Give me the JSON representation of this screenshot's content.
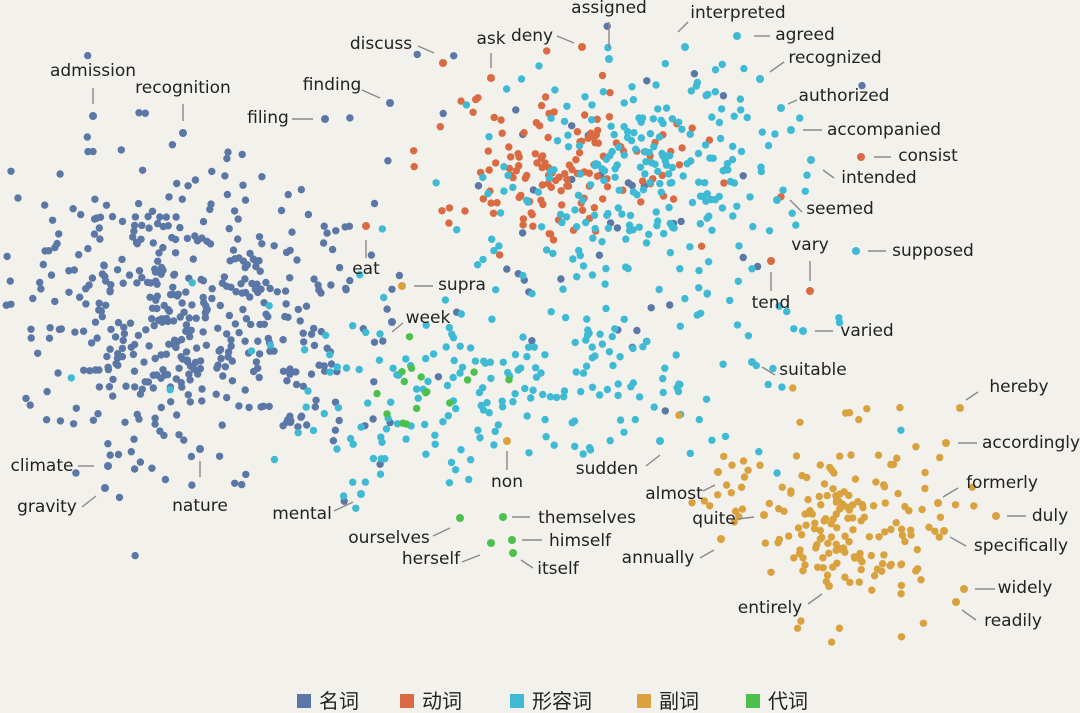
{
  "chart_data": {
    "type": "scatter",
    "title": "",
    "xlabel": "",
    "ylabel": "",
    "legend_position": "bottom",
    "grid": false,
    "series": [
      {
        "name": "名词",
        "color": "#5b77a6"
      },
      {
        "name": "动词",
        "color": "#d96a42"
      },
      {
        "name": "形容词",
        "color": "#3fbad4"
      },
      {
        "name": "副词",
        "color": "#d9a23e"
      },
      {
        "name": "代词",
        "color": "#4cc04c"
      }
    ],
    "clusters": [
      {
        "series": 0,
        "n": 430,
        "cx": 170,
        "cy": 310,
        "sx": 80,
        "sy": 75
      },
      {
        "series": 0,
        "n": 60,
        "cx": 330,
        "cy": 330,
        "sx": 45,
        "sy": 70
      },
      {
        "series": 0,
        "n": 45,
        "cx": 600,
        "cy": 220,
        "sx": 110,
        "sy": 80
      },
      {
        "series": 1,
        "n": 140,
        "cx": 560,
        "cy": 165,
        "sx": 70,
        "sy": 40
      },
      {
        "series": 2,
        "n": 220,
        "cx": 640,
        "cy": 170,
        "sx": 70,
        "sy": 55
      },
      {
        "series": 2,
        "n": 190,
        "cx": 560,
        "cy": 370,
        "sx": 130,
        "sy": 50
      },
      {
        "series": 2,
        "n": 40,
        "cx": 380,
        "cy": 420,
        "sx": 60,
        "sy": 40
      },
      {
        "series": 3,
        "n": 170,
        "cx": 850,
        "cy": 520,
        "sx": 45,
        "sy": 45
      },
      {
        "series": 3,
        "n": 15,
        "cx": 720,
        "cy": 470,
        "sx": 35,
        "sy": 40
      },
      {
        "series": 4,
        "n": 16,
        "cx": 420,
        "cy": 390,
        "sx": 30,
        "sy": 25
      }
    ],
    "annotations": [
      {
        "text": "admission",
        "series": 0
      },
      {
        "text": "recognition",
        "series": 0
      },
      {
        "text": "finding",
        "series": 0
      },
      {
        "text": "filing",
        "series": 0
      },
      {
        "text": "discuss",
        "series": 1
      },
      {
        "text": "ask",
        "series": 1
      },
      {
        "text": "deny",
        "series": 1
      },
      {
        "text": "assigned",
        "series": 2
      },
      {
        "text": "interpreted",
        "series": 2
      },
      {
        "text": "agreed",
        "series": 2
      },
      {
        "text": "recognized",
        "series": 2
      },
      {
        "text": "authorized",
        "series": 2
      },
      {
        "text": "accompanied",
        "series": 2
      },
      {
        "text": "consist",
        "series": 1
      },
      {
        "text": "intended",
        "series": 2
      },
      {
        "text": "seemed",
        "series": 2
      },
      {
        "text": "eat",
        "series": 1
      },
      {
        "text": "vary",
        "series": 1
      },
      {
        "text": "supposed",
        "series": 2
      },
      {
        "text": "supra",
        "series": 3
      },
      {
        "text": "tend",
        "series": 1
      },
      {
        "text": "week",
        "series": 0
      },
      {
        "text": "varied",
        "series": 2
      },
      {
        "text": "suitable",
        "series": 2
      },
      {
        "text": "hereby",
        "series": 3
      },
      {
        "text": "accordingly",
        "series": 3
      },
      {
        "text": "climate",
        "series": 0
      },
      {
        "text": "gravity",
        "series": 0
      },
      {
        "text": "nature",
        "series": 0
      },
      {
        "text": "non",
        "series": 3
      },
      {
        "text": "sudden",
        "series": 2
      },
      {
        "text": "almost",
        "series": 3
      },
      {
        "text": "formerly",
        "series": 3
      },
      {
        "text": "mental",
        "series": 2
      },
      {
        "text": "ourselves",
        "series": 4
      },
      {
        "text": "themselves",
        "series": 4
      },
      {
        "text": "himself",
        "series": 4
      },
      {
        "text": "herself",
        "series": 4
      },
      {
        "text": "itself",
        "series": 4
      },
      {
        "text": "quite",
        "series": 3
      },
      {
        "text": "duly",
        "series": 3
      },
      {
        "text": "specifically",
        "series": 3
      },
      {
        "text": "annually",
        "series": 3
      },
      {
        "text": "widely",
        "series": 3
      },
      {
        "text": "entirely",
        "series": 3
      },
      {
        "text": "readily",
        "series": 3
      }
    ]
  }
}
